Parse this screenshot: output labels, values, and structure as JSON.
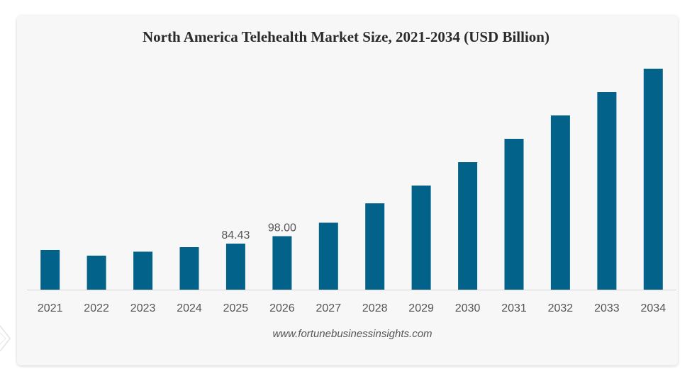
{
  "chart_data": {
    "type": "bar",
    "title": "North America Telehealth Market Size, 2021-2034 (USD Billion)",
    "xlabel": "",
    "ylabel": "",
    "categories": [
      "2021",
      "2022",
      "2023",
      "2024",
      "2025",
      "2026",
      "2027",
      "2028",
      "2029",
      "2030",
      "2031",
      "2032",
      "2033",
      "2034"
    ],
    "values": [
      72.7,
      62.3,
      69.6,
      77.9,
      84.43,
      98.0,
      122.7,
      158.3,
      190.9,
      233.8,
      276.6,
      319.5,
      362.4,
      405.2
    ],
    "data_labels": [
      {
        "category": "2025",
        "text": "84.43"
      },
      {
        "category": "2026",
        "text": "98.00"
      }
    ],
    "ylim": [
      0,
      405.2
    ],
    "grid": false,
    "legend": "none",
    "bar_color": "#036289"
  },
  "footer": {
    "source": "www.fortunebusinessinsights.com"
  }
}
